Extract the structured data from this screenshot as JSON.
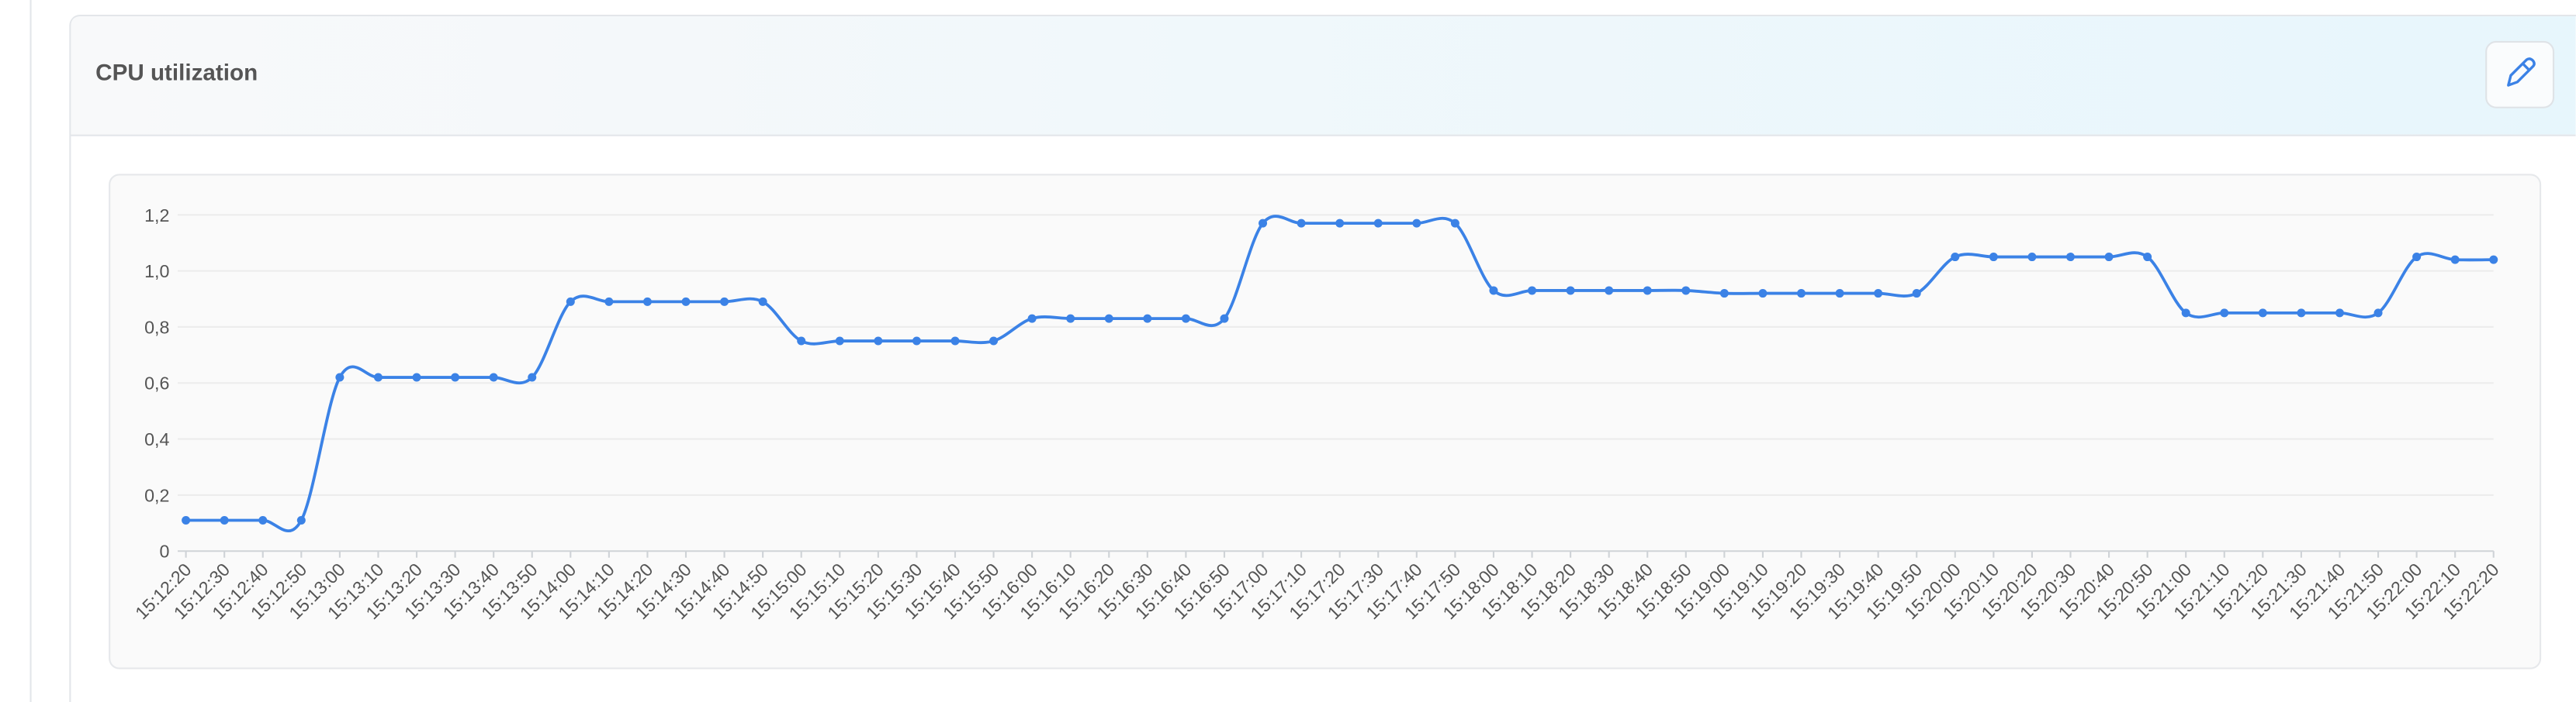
{
  "header": {
    "title": "CPU utilization"
  },
  "chart_data": {
    "type": "line",
    "categories": [
      "15:12:20",
      "15:12:30",
      "15:12:40",
      "15:12:50",
      "15:13:00",
      "15:13:10",
      "15:13:20",
      "15:13:30",
      "15:13:40",
      "15:13:50",
      "15:14:00",
      "15:14:10",
      "15:14:20",
      "15:14:30",
      "15:14:40",
      "15:14:50",
      "15:15:00",
      "15:15:10",
      "15:15:20",
      "15:15:30",
      "15:15:40",
      "15:15:50",
      "15:16:00",
      "15:16:10",
      "15:16:20",
      "15:16:30",
      "15:16:40",
      "15:16:50",
      "15:17:00",
      "15:17:10",
      "15:17:20",
      "15:17:30",
      "15:17:40",
      "15:17:50",
      "15:18:00",
      "15:18:10",
      "15:18:20",
      "15:18:30",
      "15:18:40",
      "15:18:50",
      "15:19:00",
      "15:19:10",
      "15:19:20",
      "15:19:30",
      "15:19:40",
      "15:19:50",
      "15:20:00",
      "15:20:10",
      "15:20:20",
      "15:20:30",
      "15:20:40",
      "15:20:50",
      "15:21:00",
      "15:21:10",
      "15:21:20",
      "15:21:30",
      "15:21:40",
      "15:21:50",
      "15:22:00",
      "15:22:10",
      "15:22:20"
    ],
    "series": [
      {
        "color": "#3b82e6",
        "values": [
          0.11,
          0.11,
          0.11,
          0.11,
          0.62,
          0.62,
          0.62,
          0.62,
          0.62,
          0.62,
          0.89,
          0.89,
          0.89,
          0.89,
          0.89,
          0.89,
          0.75,
          0.75,
          0.75,
          0.75,
          0.75,
          0.75,
          0.83,
          0.83,
          0.83,
          0.83,
          0.83,
          0.83,
          1.17,
          1.17,
          1.17,
          1.17,
          1.17,
          1.17,
          0.93,
          0.93,
          0.93,
          0.93,
          0.93,
          0.93,
          0.92,
          0.92,
          0.92,
          0.92,
          0.92,
          0.92,
          1.05,
          1.05,
          1.05,
          1.05,
          1.05,
          1.05,
          0.85,
          0.85,
          0.85,
          0.85,
          0.85,
          0.85,
          1.05,
          1.04,
          1.04
        ]
      }
    ],
    "ylim": [
      0,
      1.2
    ],
    "yticks": [
      0,
      {
        "value": 0.2,
        "label": "0,2"
      },
      {
        "value": 0.4,
        "label": "0,4"
      },
      {
        "value": 0.6,
        "label": "0,6"
      },
      {
        "value": 0.8,
        "label": "0,8"
      },
      {
        "value": 1.0,
        "label": "1,0"
      },
      {
        "value": 1.2,
        "label": "1,2"
      }
    ],
    "grid": true
  }
}
